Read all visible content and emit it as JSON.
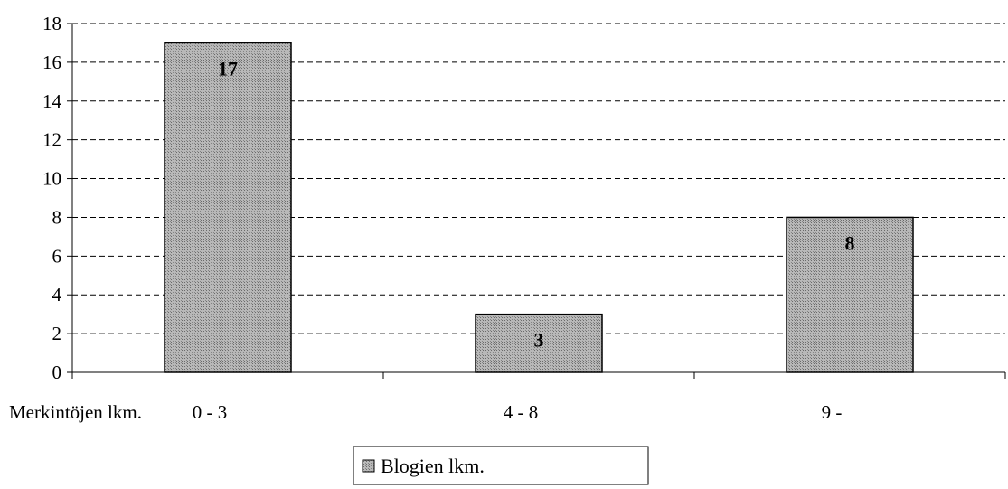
{
  "chart_data": {
    "type": "bar",
    "xlabel": "Merkintöjen lkm.",
    "categories": [
      "0 - 3",
      "4 - 8",
      "9 -"
    ],
    "series": [
      {
        "name": "Blogien lkm.",
        "values": [
          17,
          3,
          8
        ]
      }
    ],
    "ylim": [
      0,
      18
    ],
    "yticks": [
      0,
      2,
      4,
      6,
      8,
      10,
      12,
      14,
      16,
      18
    ],
    "grid": "horizontal-dashed",
    "legend_position": "bottom-center",
    "colors": {
      "bar_fill": "#a8a8a8",
      "bar_stroke": "#000000",
      "grid": "#000000"
    }
  }
}
